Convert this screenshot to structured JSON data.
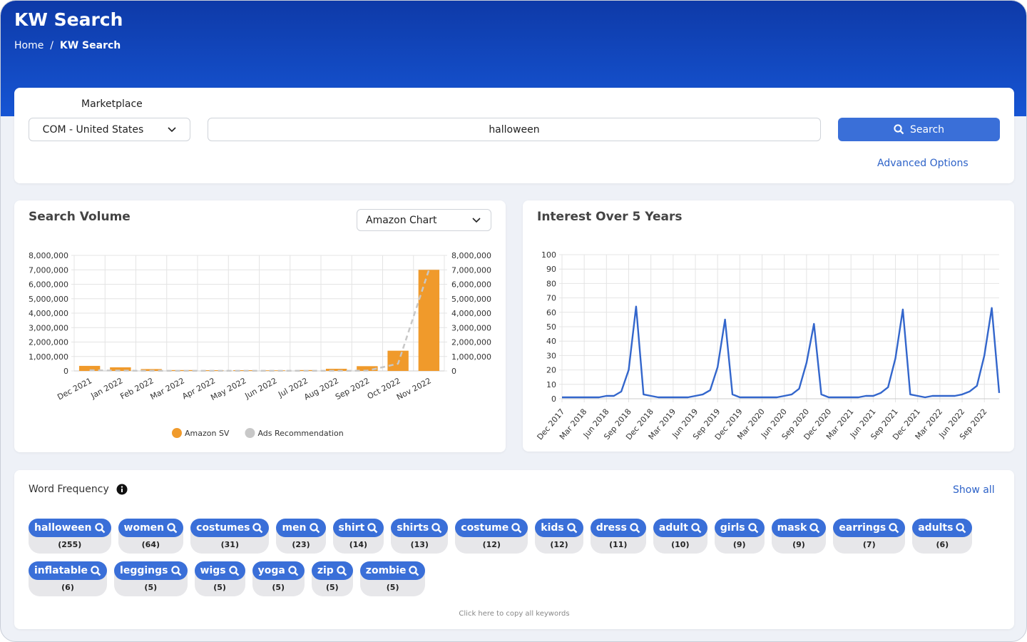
{
  "header": {
    "title": "KW Search",
    "breadcrumb": [
      "Home",
      "KW Search"
    ],
    "separator": "/"
  },
  "search": {
    "marketplace_label": "Marketplace",
    "marketplace": "COM - United States",
    "query": "halloween",
    "button": "Search",
    "advanced": "Advanced Options"
  },
  "panels": {
    "chart_selector": "Amazon Chart"
  },
  "chart_data": [
    {
      "type": "bar",
      "title": "Search Volume",
      "categories": [
        "Dec 2021",
        "Jan 2022",
        "Feb 2022",
        "Mar 2022",
        "Apr 2022",
        "May 2022",
        "Jun 2022",
        "Jul 2022",
        "Aug 2022",
        "Sep 2022",
        "Oct 2022",
        "Nov 2022"
      ],
      "series": [
        {
          "name": "Amazon SV",
          "type": "bar",
          "color": "#f09a2b",
          "values": [
            350000,
            250000,
            130000,
            60000,
            50000,
            50000,
            40000,
            60000,
            150000,
            330000,
            1400000,
            7000000
          ]
        },
        {
          "name": "Ads Recommendation",
          "type": "line",
          "axis": "y2",
          "color": "#c8c8c8",
          "line_style": "dashed",
          "values": [
            50000,
            20000,
            10000,
            10000,
            10000,
            10000,
            10000,
            10000,
            10000,
            20000,
            500000,
            7000000
          ]
        }
      ],
      "ylim": [
        0,
        8000000
      ],
      "yticks": [
        0,
        {
          "value": 1000000,
          "label": "1,000,000"
        },
        {
          "value": 2000000,
          "label": "2,000,000"
        },
        {
          "value": 3000000,
          "label": "3,000,000"
        },
        {
          "value": 4000000,
          "label": "4,000,000"
        },
        {
          "value": 5000000,
          "label": "5,000,000"
        },
        {
          "value": 6000000,
          "label": "6,000,000"
        },
        {
          "value": 7000000,
          "label": "7,000,000"
        },
        {
          "value": 8000000,
          "label": "8,000,000"
        }
      ],
      "y2lim": [
        0,
        8000000
      ],
      "y2ticks": [
        0,
        {
          "value": 1000000,
          "label": "1,000,000"
        },
        {
          "value": 2000000,
          "label": "2,000,000"
        },
        {
          "value": 3000000,
          "label": "3,000,000"
        },
        {
          "value": 4000000,
          "label": "4,000,000"
        },
        {
          "value": 5000000,
          "label": "5,000,000"
        },
        {
          "value": 6000000,
          "label": "6,000,000"
        },
        {
          "value": 7000000,
          "label": "7,000,000"
        },
        {
          "value": 8000000,
          "label": "8,000,000"
        }
      ],
      "grid": true,
      "legend": "bottom"
    },
    {
      "type": "line",
      "title": "Interest Over 5 Years",
      "categories": [
        "Dec 2017",
        null,
        null,
        "Mar 2018",
        null,
        null,
        "Jun 2018",
        null,
        null,
        "Sep 2018",
        null,
        null,
        "Dec 2018",
        null,
        null,
        "Mar 2019",
        null,
        null,
        "Jun 2019",
        null,
        null,
        "Sep 2019",
        null,
        null,
        "Dec 2019",
        null,
        null,
        "Mar 2020",
        null,
        null,
        "Jun 2020",
        null,
        null,
        "Sep 2020",
        null,
        null,
        "Dec 2020",
        null,
        null,
        "Mar 2021",
        null,
        null,
        "Jun 2021",
        null,
        null,
        "Sep 2021",
        null,
        null,
        "Dec 2021",
        null,
        null,
        "Mar 2022",
        null,
        null,
        "Jun 2022",
        null,
        null,
        "Sep 2022",
        null,
        null
      ],
      "series": [
        {
          "color": "#3366cc",
          "values": [
            1,
            1,
            1,
            1,
            1,
            1,
            2,
            2,
            5,
            20,
            64,
            3,
            2,
            1,
            1,
            1,
            1,
            1,
            2,
            3,
            6,
            22,
            55,
            3,
            1,
            1,
            1,
            1,
            1,
            1,
            2,
            3,
            7,
            25,
            52,
            3,
            1,
            1,
            1,
            1,
            1,
            2,
            2,
            4,
            8,
            28,
            62,
            3,
            2,
            1,
            2,
            2,
            2,
            2,
            3,
            5,
            9,
            30,
            63,
            4
          ]
        }
      ],
      "ylim": [
        0,
        100
      ],
      "yticks": [
        0,
        10,
        20,
        30,
        40,
        50,
        60,
        70,
        80,
        90,
        100
      ],
      "grid": true
    }
  ],
  "word_frequency": {
    "title": "Word Frequency",
    "show_all": "Show all",
    "copy": "Click here to copy all keywords",
    "words": [
      {
        "word": "halloween",
        "count": "(255)"
      },
      {
        "word": "women",
        "count": "(64)"
      },
      {
        "word": "costumes",
        "count": "(31)"
      },
      {
        "word": "men",
        "count": "(23)"
      },
      {
        "word": "shirt",
        "count": "(14)"
      },
      {
        "word": "shirts",
        "count": "(13)"
      },
      {
        "word": "costume",
        "count": "(12)"
      },
      {
        "word": "kids",
        "count": "(12)"
      },
      {
        "word": "dress",
        "count": "(11)"
      },
      {
        "word": "adult",
        "count": "(10)"
      },
      {
        "word": "girls",
        "count": "(9)"
      },
      {
        "word": "mask",
        "count": "(9)"
      },
      {
        "word": "earrings",
        "count": "(7)"
      },
      {
        "word": "adults",
        "count": "(6)"
      },
      {
        "word": "inflatable",
        "count": "(6)"
      },
      {
        "word": "leggings",
        "count": "(5)"
      },
      {
        "word": "wigs",
        "count": "(5)"
      },
      {
        "word": "yoga",
        "count": "(5)"
      },
      {
        "word": "zip",
        "count": "(5)"
      },
      {
        "word": "zombie",
        "count": "(5)"
      }
    ]
  }
}
